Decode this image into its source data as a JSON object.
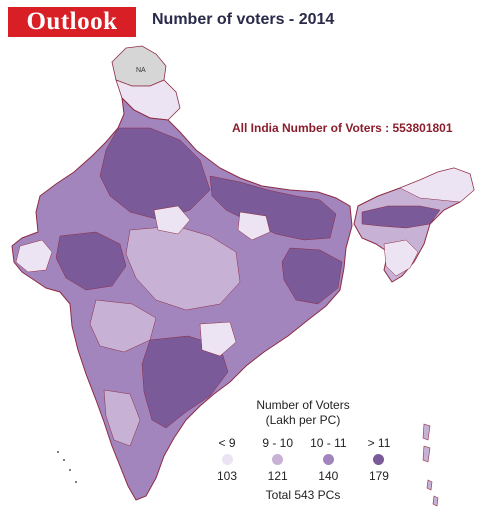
{
  "header": {
    "logo_text": "Outlook",
    "title": "Number of voters - 2014"
  },
  "map": {
    "total_label": "All India Number of Voters : 553801801",
    "na_label": "NA",
    "colors": {
      "below_9": "#ece4f2",
      "9_to_10": "#c7b2d6",
      "10_to_11": "#a385bd",
      "above_11": "#7a5a98",
      "boundary": "#8e2b43",
      "na_fill": "#d6d6d6"
    }
  },
  "legend": {
    "title_line1": "Number of Voters",
    "title_line2": "(Lakh per PC)",
    "bins": [
      {
        "range": "< 9",
        "count": "103",
        "color": "#ece4f2"
      },
      {
        "range": "9 - 10",
        "count": "121",
        "color": "#c7b2d6"
      },
      {
        "range": "10 - 11",
        "count": "140",
        "color": "#a385bd"
      },
      {
        "range": "> 11",
        "count": "179",
        "color": "#7a5a98"
      }
    ],
    "total": "Total 543 PCs"
  }
}
